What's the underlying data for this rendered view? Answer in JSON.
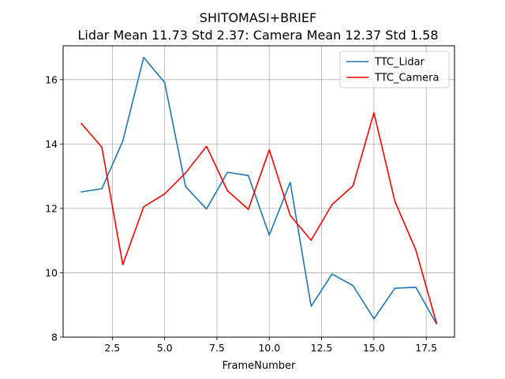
{
  "chart_data": {
    "type": "line",
    "title": "SHITOMASI+BRIEF",
    "subtitle": "Lidar Mean 11.73 Std 2.37: Camera Mean 12.37 Std 1.58",
    "xlabel": "FrameNumber",
    "ylabel": "",
    "xlim": [
      0.15,
      18.85
    ],
    "ylim": [
      8.0,
      17.05
    ],
    "xticks": [
      2.5,
      5.0,
      7.5,
      10.0,
      12.5,
      15.0,
      17.5
    ],
    "xtick_labels": [
      "2.5",
      "5.0",
      "7.5",
      "10.0",
      "12.5",
      "15.0",
      "17.5"
    ],
    "yticks": [
      8,
      10,
      12,
      14,
      16
    ],
    "ytick_labels": [
      "8",
      "10",
      "12",
      "14",
      "16"
    ],
    "grid": true,
    "legend_position": "top-right",
    "x": [
      1,
      2,
      3,
      4,
      5,
      6,
      7,
      8,
      9,
      10,
      11,
      12,
      13,
      14,
      15,
      16,
      17,
      18
    ],
    "series": [
      {
        "name": "TTC_Lidar",
        "color": "#1f77b4",
        "values": [
          12.51,
          12.61,
          14.09,
          16.69,
          15.91,
          12.68,
          11.98,
          13.12,
          13.02,
          11.17,
          12.81,
          8.96,
          9.96,
          9.6,
          8.57,
          9.52,
          9.55,
          8.4
        ]
      },
      {
        "name": "TTC_Camera",
        "color": "#ff0000",
        "values": [
          14.65,
          13.9,
          10.25,
          12.05,
          12.45,
          13.1,
          13.93,
          12.55,
          11.97,
          13.82,
          11.78,
          11.01,
          12.12,
          12.7,
          14.97,
          12.22,
          10.71,
          8.41
        ]
      }
    ]
  }
}
